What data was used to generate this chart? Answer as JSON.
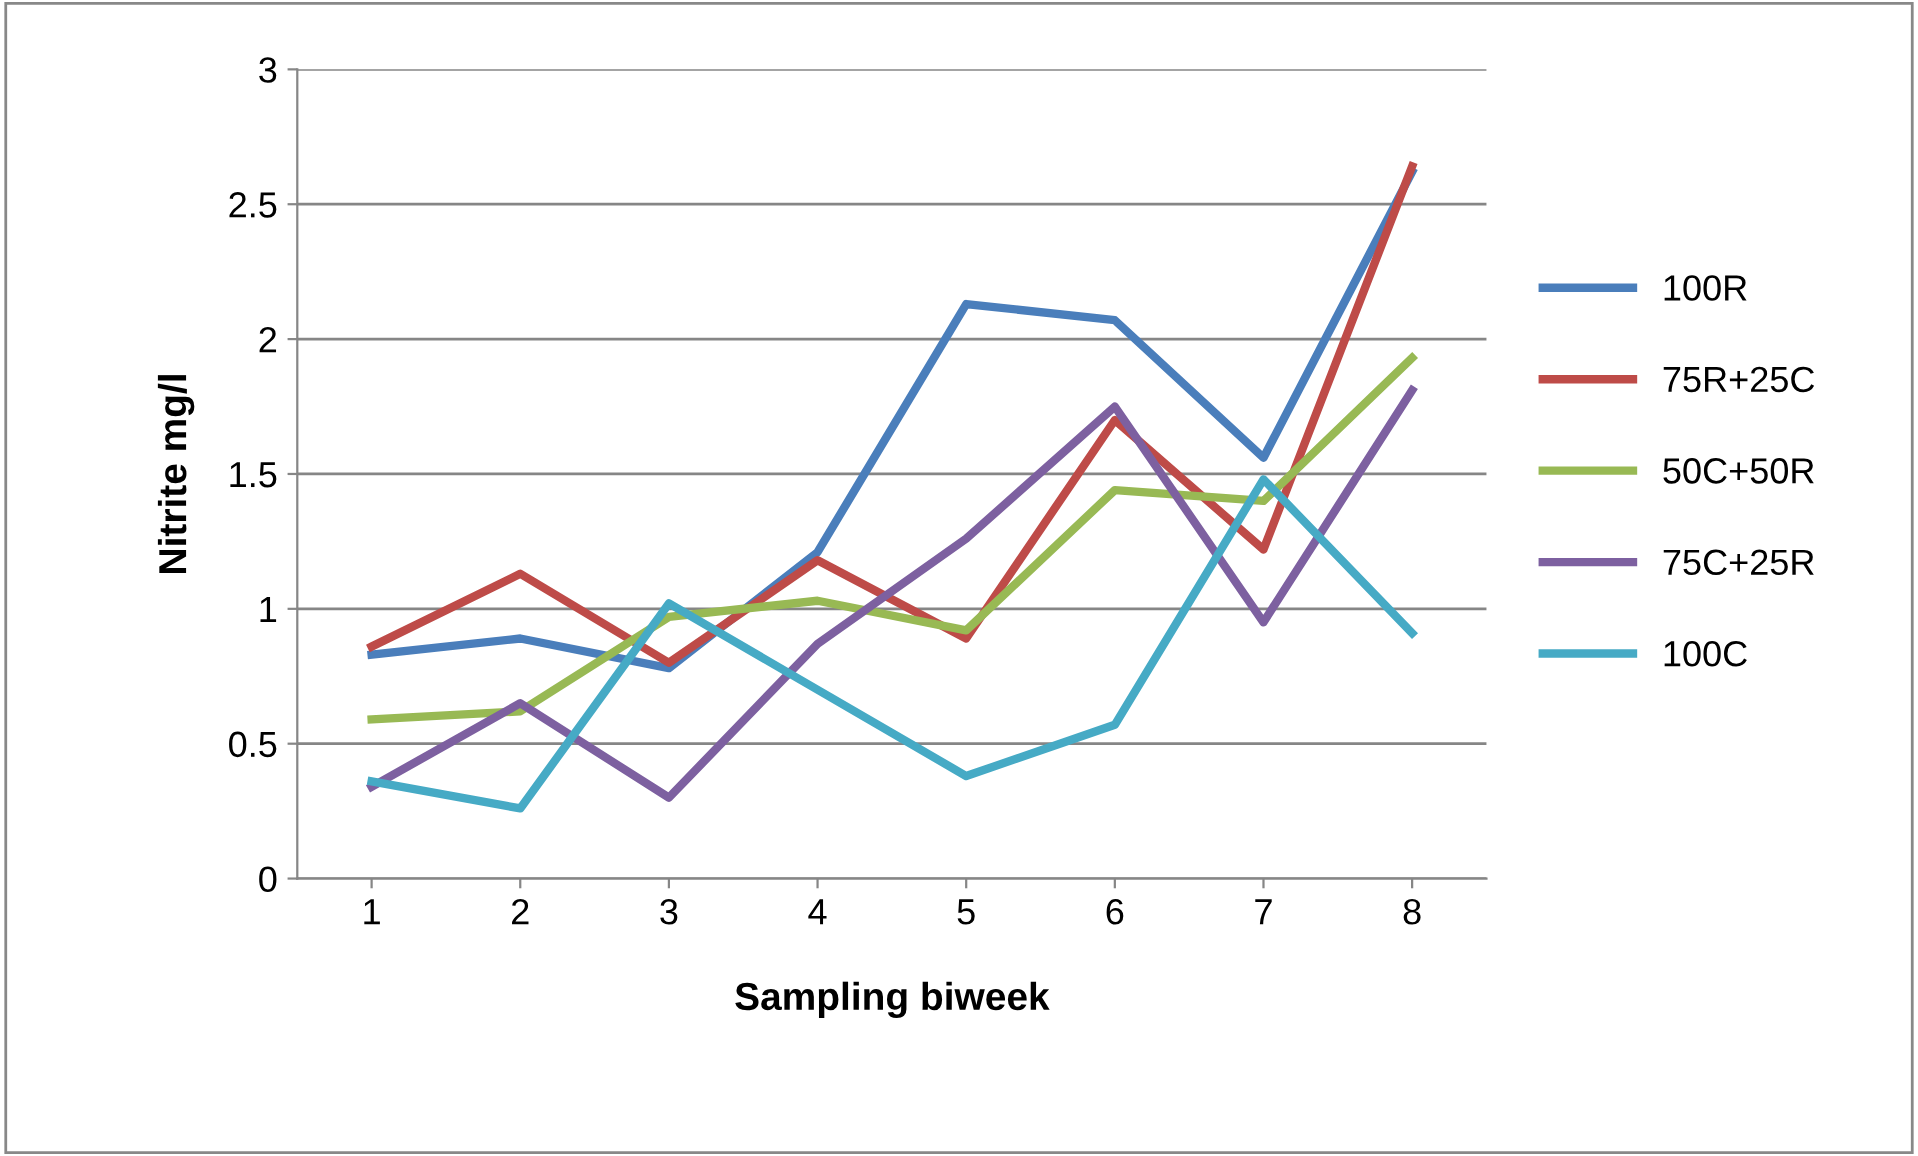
{
  "chart_data": {
    "type": "line",
    "xlabel": "Sampling biweek",
    "ylabel": "Nitrite mg/l",
    "categories": [
      "1",
      "2",
      "3",
      "4",
      "5",
      "6",
      "7",
      "8"
    ],
    "series": [
      {
        "name": "100R",
        "color": "#4a7ebb",
        "values": [
          0.83,
          0.89,
          0.78,
          1.21,
          2.13,
          2.07,
          1.56,
          2.62
        ]
      },
      {
        "name": "75R+25C",
        "color": "#be4b48",
        "values": [
          0.86,
          1.13,
          0.8,
          1.18,
          0.89,
          1.7,
          1.22,
          2.64
        ]
      },
      {
        "name": "50C+50R",
        "color": "#98b954",
        "values": [
          0.59,
          0.62,
          0.97,
          1.03,
          0.92,
          1.44,
          1.4,
          1.93
        ]
      },
      {
        "name": "75C+25R",
        "color": "#7d60a0",
        "values": [
          0.34,
          0.65,
          0.3,
          0.87,
          1.26,
          1.75,
          0.95,
          1.81
        ]
      },
      {
        "name": "100C",
        "color": "#46aac5",
        "values": [
          0.36,
          0.26,
          1.02,
          0.7,
          0.38,
          0.57,
          1.48,
          0.91
        ]
      }
    ],
    "ylim": [
      0,
      3
    ],
    "yticks": [
      0,
      0.5,
      1,
      1.5,
      2,
      2.5,
      3
    ],
    "grid": "y",
    "legend": "right",
    "marker": "none",
    "line_style": "solid"
  }
}
